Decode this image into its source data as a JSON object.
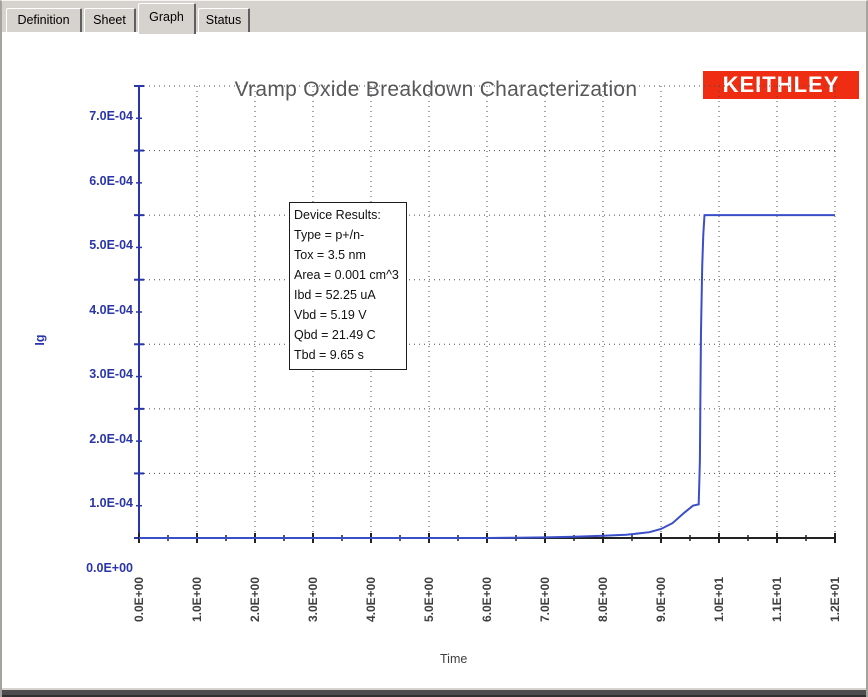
{
  "tabs": [
    {
      "label": "Definition",
      "active": false
    },
    {
      "label": "Sheet",
      "active": false
    },
    {
      "label": "Graph",
      "active": true
    },
    {
      "label": "Status",
      "active": false
    }
  ],
  "logo": {
    "text": "KEITHLEY",
    "bg_color": "#ee2d12",
    "fg_color": "#ffffff"
  },
  "chart_data": {
    "type": "line",
    "title": "Vramp Oxide Breakdown Characterization",
    "xlabel": "Time",
    "ylabel": "Ig",
    "xlim": [
      0,
      12
    ],
    "ylim": [
      0,
      0.0007
    ],
    "grid": "dotted",
    "x_major_ticks": [
      {
        "v": 0,
        "label": "0.0E+00"
      },
      {
        "v": 1,
        "label": "1.0E+00"
      },
      {
        "v": 2,
        "label": "2.0E+00"
      },
      {
        "v": 3,
        "label": "3.0E+00"
      },
      {
        "v": 4,
        "label": "4.0E+00"
      },
      {
        "v": 5,
        "label": "5.0E+00"
      },
      {
        "v": 6,
        "label": "6.0E+00"
      },
      {
        "v": 7,
        "label": "7.0E+00"
      },
      {
        "v": 8,
        "label": "8.0E+00"
      },
      {
        "v": 9,
        "label": "9.0E+00"
      },
      {
        "v": 10,
        "label": "1.0E+01"
      },
      {
        "v": 11,
        "label": "1.1E+01"
      },
      {
        "v": 12,
        "label": "1.2E+01"
      }
    ],
    "x_minor_step": 0.5,
    "y_major_ticks": [
      {
        "v": 0.0,
        "label": "0.0E+00"
      },
      {
        "v": 0.0001,
        "label": "1.0E-04"
      },
      {
        "v": 0.0002,
        "label": "2.0E-04"
      },
      {
        "v": 0.0003,
        "label": "3.0E-04"
      },
      {
        "v": 0.0004,
        "label": "4.0E-04"
      },
      {
        "v": 0.0005,
        "label": "5.0E-04"
      },
      {
        "v": 0.0006,
        "label": "6.0E-04"
      },
      {
        "v": 0.0007,
        "label": "7.0E-04"
      }
    ],
    "y_minor_step": 5e-05,
    "series": [
      {
        "name": "Ig",
        "color": "#3a4ec8",
        "points": [
          [
            0,
            0
          ],
          [
            1,
            0
          ],
          [
            2,
            0
          ],
          [
            3,
            0
          ],
          [
            4,
            0
          ],
          [
            5,
            0
          ],
          [
            6,
            0
          ],
          [
            6.5,
            5e-07
          ],
          [
            7,
            1e-06
          ],
          [
            7.5,
            2e-06
          ],
          [
            8,
            3.5e-06
          ],
          [
            8.4,
            5e-06
          ],
          [
            8.8,
            9e-06
          ],
          [
            9.0,
            1.4e-05
          ],
          [
            9.2,
            2.3e-05
          ],
          [
            9.4,
            3.9e-05
          ],
          [
            9.55,
            5e-05
          ],
          [
            9.65,
            5.225e-05
          ],
          [
            9.67,
            0.00012
          ],
          [
            9.68,
            0.00022
          ],
          [
            9.69,
            0.00032
          ],
          [
            9.71,
            0.00042
          ],
          [
            9.73,
            0.00047
          ],
          [
            9.75,
            0.0005
          ],
          [
            12,
            0.0005
          ]
        ]
      }
    ],
    "annotation": {
      "lines": [
        "Device Results:",
        "Type = p+/n-",
        "Tox = 3.5 nm",
        "Area = 0.001 cm^3",
        "Ibd = 52.25 uA",
        "Vbd = 5.19 V",
        "Qbd = 21.49 C",
        "Tbd = 9.65 s"
      ]
    },
    "colors": {
      "axis_y": "#2a35aa",
      "axis_x": "#222222",
      "grid": "#4a4a4a",
      "y_tick_label": "#2a35aa",
      "x_tick_label": "#3f3f3f",
      "title": "#58585a"
    },
    "legend_position": "none"
  }
}
